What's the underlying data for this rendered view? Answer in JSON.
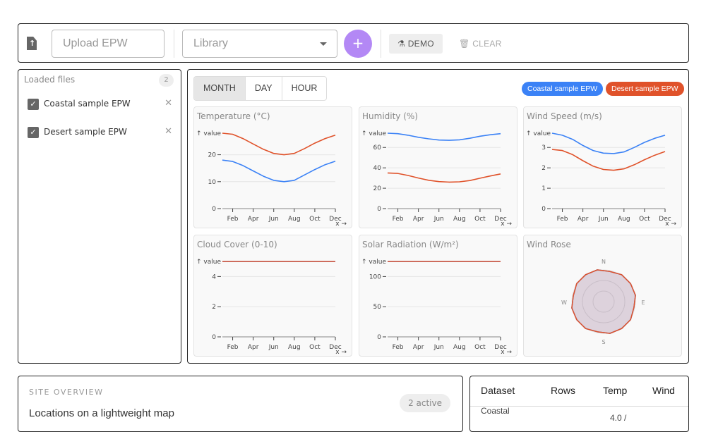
{
  "toolbar": {
    "upload_placeholder": "Upload EPW",
    "library_placeholder": "Library",
    "add_label": "+",
    "demo_label": "DEMO",
    "clear_label": "CLEAR"
  },
  "files": {
    "title": "Loaded files",
    "count": "2",
    "items": [
      {
        "label": "Coastal sample EPW",
        "checked": true
      },
      {
        "label": "Desert sample EPW",
        "checked": true
      }
    ]
  },
  "tabs": [
    {
      "label": "MONTH",
      "active": true
    },
    {
      "label": "DAY"
    },
    {
      "label": "HOUR"
    }
  ],
  "legend": [
    {
      "label": "Coastal sample EPW",
      "color": "#3b82f6"
    },
    {
      "label": "Desert sample EPW",
      "color": "#e0522a"
    }
  ],
  "chart_data": [
    {
      "type": "line",
      "title": "Temperature (°C)",
      "ylabel": "↑ value",
      "xlabel": "x →",
      "ylim": [
        0,
        28
      ],
      "yticks": [
        0,
        10,
        20
      ],
      "x": [
        1,
        2,
        3,
        4,
        5,
        6,
        7,
        8,
        9,
        10,
        11,
        12
      ],
      "xticks": [
        "Feb",
        "Apr",
        "Jun",
        "Aug",
        "Oct",
        "Dec"
      ],
      "series": [
        {
          "name": "Coastal sample EPW",
          "values": [
            18,
            17.5,
            16,
            14,
            12,
            10.5,
            10,
            10.5,
            12.5,
            14.5,
            16.3,
            17.6
          ]
        },
        {
          "name": "Desert sample EPW",
          "values": [
            28,
            27.6,
            26,
            24,
            22,
            20.5,
            20,
            20.5,
            22.3,
            24.3,
            26,
            27.3
          ]
        }
      ]
    },
    {
      "type": "line",
      "title": "Humidity (%)",
      "ylabel": "↑ value",
      "xlabel": "x →",
      "ylim": [
        0,
        74
      ],
      "yticks": [
        0,
        20,
        40,
        60
      ],
      "x": [
        1,
        2,
        3,
        4,
        5,
        6,
        7,
        8,
        9,
        10,
        11,
        12
      ],
      "xticks": [
        "Feb",
        "Apr",
        "Jun",
        "Aug",
        "Oct",
        "Dec"
      ],
      "series": [
        {
          "name": "Coastal sample EPW",
          "values": [
            74,
            73.5,
            72,
            70,
            68.5,
            67.3,
            67,
            67.5,
            69,
            71,
            72.5,
            73.5
          ]
        },
        {
          "name": "Desert sample EPW",
          "values": [
            35,
            34.5,
            32.5,
            30,
            27.8,
            26.5,
            26,
            26.3,
            27.5,
            29.8,
            32,
            34
          ]
        }
      ]
    },
    {
      "type": "line",
      "title": "Wind Speed (m/s)",
      "ylabel": "↑ value",
      "xlabel": "x →",
      "ylim": [
        0,
        3.7
      ],
      "yticks": [
        0,
        1,
        2,
        3
      ],
      "x": [
        1,
        2,
        3,
        4,
        5,
        6,
        7,
        8,
        9,
        10,
        11,
        12
      ],
      "xticks": [
        "Feb",
        "Apr",
        "Jun",
        "Aug",
        "Oct",
        "Dec"
      ],
      "series": [
        {
          "name": "Coastal sample EPW",
          "values": [
            3.7,
            3.6,
            3.4,
            3.1,
            2.85,
            2.72,
            2.7,
            2.78,
            3.0,
            3.25,
            3.45,
            3.6
          ]
        },
        {
          "name": "Desert sample EPW",
          "values": [
            2.9,
            2.85,
            2.65,
            2.35,
            2.08,
            1.92,
            1.88,
            1.95,
            2.15,
            2.4,
            2.62,
            2.8
          ]
        }
      ]
    },
    {
      "type": "line",
      "title": "Cloud Cover (0-10)",
      "ylabel": "↑ value",
      "xlabel": "x →",
      "ylim": [
        0,
        5
      ],
      "yticks": [
        0,
        2,
        4
      ],
      "x": [
        1,
        2,
        3,
        4,
        5,
        6,
        7,
        8,
        9,
        10,
        11,
        12
      ],
      "xticks": [
        "Feb",
        "Apr",
        "Jun",
        "Aug",
        "Oct",
        "Dec"
      ],
      "series": [
        {
          "name": "Coastal sample EPW",
          "values": [
            5,
            5,
            5,
            5,
            5,
            5,
            5,
            5,
            5,
            5,
            5,
            5
          ]
        },
        {
          "name": "Desert sample EPW",
          "values": [
            5,
            5,
            5,
            5,
            5,
            5,
            5,
            5,
            5,
            5,
            5,
            5
          ]
        }
      ]
    },
    {
      "type": "line",
      "title": "Solar Radiation (W/m²)",
      "ylabel": "↑ value",
      "xlabel": "x →",
      "ylim": [
        0,
        125
      ],
      "yticks": [
        0,
        50,
        100
      ],
      "x": [
        1,
        2,
        3,
        4,
        5,
        6,
        7,
        8,
        9,
        10,
        11,
        12
      ],
      "xticks": [
        "Feb",
        "Apr",
        "Jun",
        "Aug",
        "Oct",
        "Dec"
      ],
      "series": [
        {
          "name": "Coastal sample EPW",
          "values": [
            125,
            125,
            125,
            125,
            125,
            125,
            125,
            125,
            125,
            125,
            125,
            125
          ]
        },
        {
          "name": "Desert sample EPW",
          "values": [
            125,
            125,
            125,
            125,
            125,
            125,
            125,
            125,
            125,
            125,
            125,
            125
          ]
        }
      ]
    },
    {
      "type": "radar",
      "title": "Wind Rose",
      "directions": [
        "N",
        "E",
        "S",
        "W"
      ],
      "series": [
        {
          "name": "Coastal sample EPW",
          "values": [
            0.95,
            1,
            1,
            1,
            0.95,
            1,
            1,
            1,
            0.95,
            1,
            1,
            1,
            0.95,
            1,
            1,
            1
          ]
        },
        {
          "name": "Desert sample EPW",
          "values": [
            0.95,
            1,
            1,
            1,
            0.95,
            1,
            1,
            1,
            0.95,
            1,
            1,
            1,
            0.95,
            1,
            1,
            1
          ]
        }
      ]
    }
  ],
  "overview": {
    "caption": "SITE OVERVIEW",
    "subtitle": "Locations on a lightweight map",
    "badge": "2 active"
  },
  "table": {
    "headers": [
      "Dataset",
      "Rows",
      "Temp",
      "Wind"
    ],
    "rows": [
      {
        "dataset": "Coastal",
        "temp": "4.0 /"
      }
    ]
  }
}
